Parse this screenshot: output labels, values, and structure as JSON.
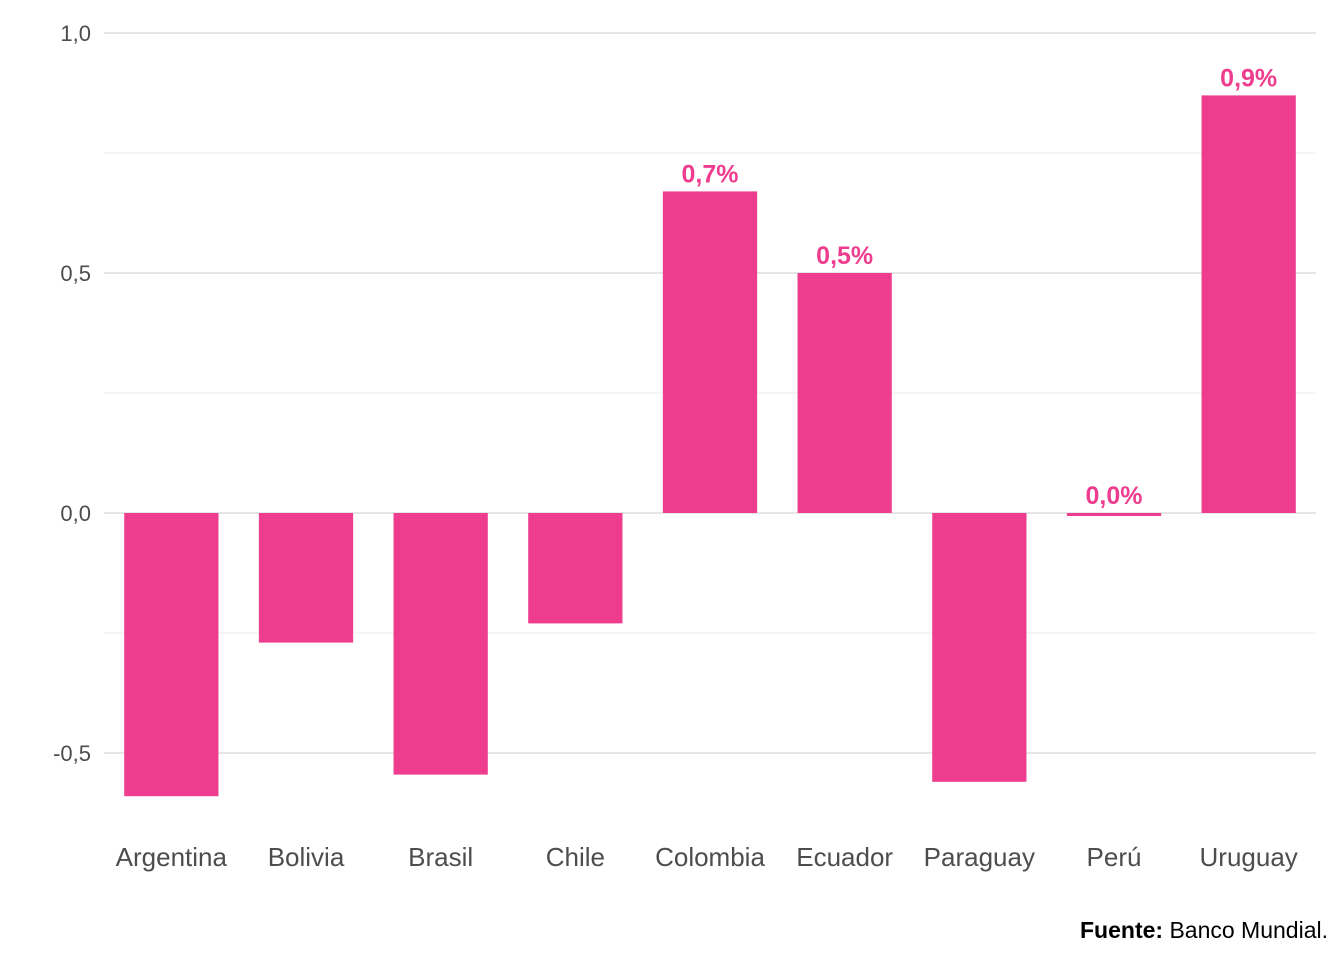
{
  "chart_data": {
    "type": "bar",
    "categories": [
      "Argentina",
      "Bolivia",
      "Brasil",
      "Chile",
      "Colombia",
      "Ecuador",
      "Paraguay",
      "Perú",
      "Uruguay"
    ],
    "values": [
      -0.59,
      -0.27,
      -0.545,
      -0.23,
      0.67,
      0.5,
      -0.56,
      -0.005,
      0.87
    ],
    "data_labels": [
      "",
      "",
      "",
      "",
      "0,7%",
      "0,5%",
      "",
      "0,0%",
      "0,9%"
    ],
    "ylim": [
      -0.625,
      1.03
    ],
    "yticks": [
      -0.5,
      0.0,
      0.5,
      1.0
    ],
    "ytick_labels": [
      "-0,5",
      "0,0",
      "0,5",
      "1,0"
    ],
    "title": "",
    "xlabel": "",
    "ylabel": "",
    "bar_color": "#ee3d8f",
    "grid": true,
    "legend": "none"
  },
  "source": {
    "label": "Fuente:",
    "text": " Banco Mundial."
  }
}
